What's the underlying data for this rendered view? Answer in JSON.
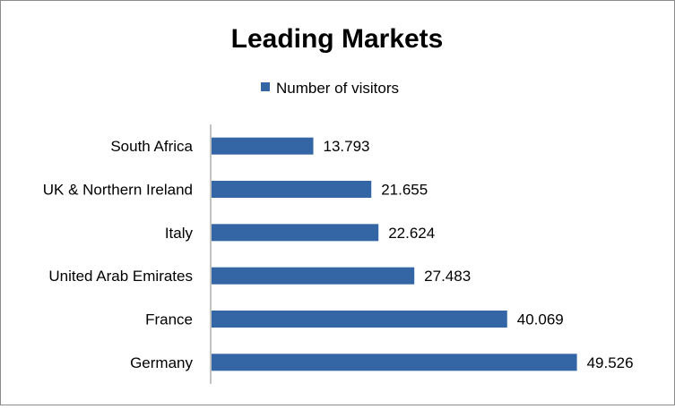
{
  "chart_data": {
    "type": "bar",
    "orientation": "horizontal",
    "title": "Leading Markets",
    "categories": [
      "South Africa",
      "UK & Northern Ireland",
      "Italy",
      "United Arab Emirates",
      "France",
      "Germany"
    ],
    "series": [
      {
        "name": "Number of visitors",
        "values": [
          13.793,
          21.655,
          22.624,
          27.483,
          40.069,
          49.526
        ],
        "value_labels": [
          "13.793",
          "21.655",
          "22.624",
          "27.483",
          "40.069",
          "49.526"
        ],
        "color": "#3465a4"
      }
    ],
    "xlim": [
      0,
      50
    ],
    "grid": false,
    "legend_position": "top"
  }
}
